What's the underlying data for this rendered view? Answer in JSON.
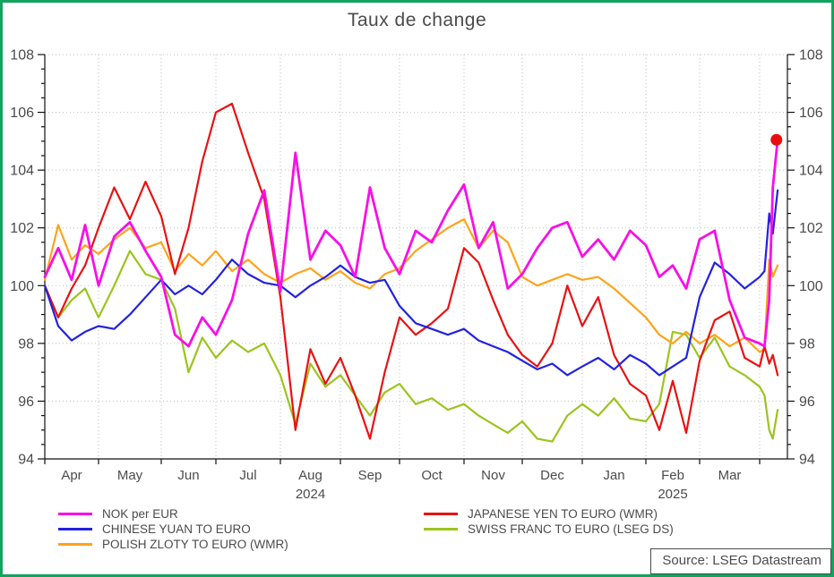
{
  "page": {
    "title": "Taux de change",
    "source": "Source: LSEG Datastream",
    "border_color": "#12A35F",
    "text_color": "#4B4B4B"
  },
  "chart_data": {
    "type": "line",
    "title": "Taux de change",
    "xlabel": "",
    "ylabel": "",
    "ylim": [
      94,
      108
    ],
    "y_ticks": [
      94,
      96,
      98,
      100,
      102,
      104,
      106,
      108
    ],
    "y_minor_tick_step": 0.5,
    "grid": "dotted",
    "legend_position": "bottom",
    "x_month_labels": [
      "Apr",
      "May",
      "Jun",
      "Jul",
      "Aug",
      "Sep",
      "Oct",
      "Nov",
      "Dec",
      "Jan",
      "Feb",
      "Mar"
    ],
    "x_year_labels": [
      {
        "label": "2024",
        "under_month_index": 4
      },
      {
        "label": "2025",
        "under_month_index": 10
      }
    ],
    "series": [
      {
        "key": "nok",
        "name": "NOK per EUR",
        "color": "#F80FE8",
        "points": [
          [
            0,
            100.3
          ],
          [
            0.25,
            101.3
          ],
          [
            0.5,
            100.2
          ],
          [
            0.75,
            102.1
          ],
          [
            1,
            100.0
          ],
          [
            1.25,
            101.7
          ],
          [
            1.5,
            102.2
          ],
          [
            1.75,
            101.2
          ],
          [
            2,
            100.3
          ],
          [
            2.25,
            98.3
          ],
          [
            2.5,
            97.9
          ],
          [
            2.75,
            98.9
          ],
          [
            3,
            98.3
          ],
          [
            3.25,
            99.5
          ],
          [
            3.5,
            101.8
          ],
          [
            3.75,
            103.3
          ],
          [
            4,
            99.8
          ],
          [
            4.25,
            104.6
          ],
          [
            4.5,
            100.9
          ],
          [
            4.75,
            101.9
          ],
          [
            5,
            101.4
          ],
          [
            5.25,
            100.3
          ],
          [
            5.5,
            103.4
          ],
          [
            5.75,
            101.3
          ],
          [
            6,
            100.4
          ],
          [
            6.25,
            101.9
          ],
          [
            6.5,
            101.5
          ],
          [
            6.75,
            102.6
          ],
          [
            7,
            103.5
          ],
          [
            7.25,
            101.3
          ],
          [
            7.5,
            102.2
          ],
          [
            7.75,
            99.9
          ],
          [
            8,
            100.4
          ],
          [
            8.25,
            101.3
          ],
          [
            8.5,
            102.0
          ],
          [
            8.75,
            102.2
          ],
          [
            9,
            101.0
          ],
          [
            9.25,
            101.6
          ],
          [
            9.5,
            100.9
          ],
          [
            9.75,
            101.9
          ],
          [
            10,
            101.4
          ],
          [
            10.25,
            100.3
          ],
          [
            10.5,
            100.7
          ],
          [
            10.75,
            99.9
          ],
          [
            11,
            101.6
          ],
          [
            11.25,
            101.9
          ],
          [
            11.5,
            99.5
          ],
          [
            11.75,
            98.2
          ],
          [
            12,
            98.0
          ],
          [
            12.08,
            97.9
          ],
          [
            12.16,
            99.5
          ],
          [
            12.22,
            103.4
          ],
          [
            12.3,
            105.05
          ]
        ]
      },
      {
        "key": "cny",
        "name": "CHINESE YUAN TO EURO",
        "color": "#2222E0",
        "points": [
          [
            0,
            100.0
          ],
          [
            0.25,
            98.6
          ],
          [
            0.5,
            98.1
          ],
          [
            0.75,
            98.4
          ],
          [
            1,
            98.6
          ],
          [
            1.25,
            98.5
          ],
          [
            1.5,
            99.0
          ],
          [
            1.75,
            99.6
          ],
          [
            2,
            100.2
          ],
          [
            2.25,
            99.7
          ],
          [
            2.5,
            100.0
          ],
          [
            2.75,
            99.7
          ],
          [
            3,
            100.2
          ],
          [
            3.25,
            100.9
          ],
          [
            3.5,
            100.4
          ],
          [
            3.75,
            100.1
          ],
          [
            4,
            100.0
          ],
          [
            4.25,
            99.6
          ],
          [
            4.5,
            100.0
          ],
          [
            4.75,
            100.3
          ],
          [
            5,
            100.7
          ],
          [
            5.25,
            100.3
          ],
          [
            5.5,
            100.1
          ],
          [
            5.75,
            100.2
          ],
          [
            6,
            99.3
          ],
          [
            6.25,
            98.7
          ],
          [
            6.5,
            98.5
          ],
          [
            6.75,
            98.3
          ],
          [
            7,
            98.5
          ],
          [
            7.25,
            98.1
          ],
          [
            7.5,
            97.9
          ],
          [
            7.75,
            97.7
          ],
          [
            8,
            97.4
          ],
          [
            8.25,
            97.1
          ],
          [
            8.5,
            97.3
          ],
          [
            8.75,
            96.9
          ],
          [
            9,
            97.2
          ],
          [
            9.25,
            97.5
          ],
          [
            9.5,
            97.1
          ],
          [
            9.75,
            97.6
          ],
          [
            10,
            97.3
          ],
          [
            10.25,
            96.9
          ],
          [
            10.5,
            97.2
          ],
          [
            10.75,
            97.5
          ],
          [
            11,
            99.6
          ],
          [
            11.25,
            100.8
          ],
          [
            11.5,
            100.4
          ],
          [
            11.75,
            99.9
          ],
          [
            12,
            100.3
          ],
          [
            12.08,
            100.5
          ],
          [
            12.16,
            102.5
          ],
          [
            12.22,
            101.8
          ],
          [
            12.3,
            103.3
          ]
        ]
      },
      {
        "key": "pln",
        "name": "POLISH ZLOTY TO EURO (WMR)",
        "color": "#FFA319",
        "points": [
          [
            0,
            100.2
          ],
          [
            0.25,
            102.1
          ],
          [
            0.5,
            100.9
          ],
          [
            0.75,
            101.4
          ],
          [
            1,
            101.1
          ],
          [
            1.25,
            101.6
          ],
          [
            1.5,
            102.0
          ],
          [
            1.75,
            101.3
          ],
          [
            2,
            101.5
          ],
          [
            2.25,
            100.5
          ],
          [
            2.5,
            101.1
          ],
          [
            2.75,
            100.7
          ],
          [
            3,
            101.2
          ],
          [
            3.25,
            100.5
          ],
          [
            3.5,
            100.9
          ],
          [
            3.75,
            100.4
          ],
          [
            4,
            100.1
          ],
          [
            4.25,
            100.4
          ],
          [
            4.5,
            100.6
          ],
          [
            4.75,
            100.2
          ],
          [
            5,
            100.5
          ],
          [
            5.25,
            100.1
          ],
          [
            5.5,
            99.9
          ],
          [
            5.75,
            100.4
          ],
          [
            6,
            100.6
          ],
          [
            6.25,
            101.2
          ],
          [
            6.5,
            101.6
          ],
          [
            6.75,
            102.0
          ],
          [
            7,
            102.3
          ],
          [
            7.25,
            101.3
          ],
          [
            7.5,
            101.9
          ],
          [
            7.75,
            101.5
          ],
          [
            8,
            100.3
          ],
          [
            8.25,
            100.0
          ],
          [
            8.5,
            100.2
          ],
          [
            8.75,
            100.4
          ],
          [
            9,
            100.2
          ],
          [
            9.25,
            100.3
          ],
          [
            9.5,
            99.9
          ],
          [
            9.75,
            99.4
          ],
          [
            10,
            98.9
          ],
          [
            10.25,
            98.3
          ],
          [
            10.5,
            98.0
          ],
          [
            10.75,
            98.4
          ],
          [
            11,
            98.0
          ],
          [
            11.25,
            98.3
          ],
          [
            11.5,
            97.9
          ],
          [
            11.75,
            98.2
          ],
          [
            12,
            97.7
          ],
          [
            12.08,
            97.8
          ],
          [
            12.16,
            100.9
          ],
          [
            12.22,
            100.3
          ],
          [
            12.3,
            100.7
          ]
        ]
      },
      {
        "key": "jpy",
        "name": "JAPANESE YEN TO EURO (WMR)",
        "color": "#E81212",
        "points": [
          [
            0,
            100.0
          ],
          [
            0.25,
            98.9
          ],
          [
            0.5,
            99.9
          ],
          [
            0.75,
            100.7
          ],
          [
            1,
            102.0
          ],
          [
            1.25,
            103.4
          ],
          [
            1.5,
            102.3
          ],
          [
            1.75,
            103.6
          ],
          [
            2,
            102.4
          ],
          [
            2.25,
            100.4
          ],
          [
            2.5,
            102.0
          ],
          [
            2.75,
            104.3
          ],
          [
            3,
            106.0
          ],
          [
            3.25,
            106.3
          ],
          [
            3.5,
            104.6
          ],
          [
            3.75,
            103.0
          ],
          [
            4,
            99.6
          ],
          [
            4.25,
            95.0
          ],
          [
            4.5,
            97.8
          ],
          [
            4.75,
            96.6
          ],
          [
            5,
            97.5
          ],
          [
            5.25,
            96.2
          ],
          [
            5.5,
            94.7
          ],
          [
            5.75,
            97.0
          ],
          [
            6,
            98.9
          ],
          [
            6.25,
            98.3
          ],
          [
            6.5,
            98.7
          ],
          [
            6.75,
            99.2
          ],
          [
            7,
            101.3
          ],
          [
            7.25,
            100.8
          ],
          [
            7.5,
            99.5
          ],
          [
            7.75,
            98.3
          ],
          [
            8,
            97.6
          ],
          [
            8.25,
            97.2
          ],
          [
            8.5,
            98.0
          ],
          [
            8.75,
            100.0
          ],
          [
            9,
            98.6
          ],
          [
            9.25,
            99.6
          ],
          [
            9.5,
            97.6
          ],
          [
            9.75,
            96.6
          ],
          [
            10,
            96.2
          ],
          [
            10.25,
            95.0
          ],
          [
            10.5,
            96.7
          ],
          [
            10.75,
            94.9
          ],
          [
            11,
            97.4
          ],
          [
            11.25,
            98.8
          ],
          [
            11.5,
            99.1
          ],
          [
            11.75,
            97.5
          ],
          [
            12,
            97.2
          ],
          [
            12.08,
            97.9
          ],
          [
            12.16,
            97.3
          ],
          [
            12.22,
            97.6
          ],
          [
            12.3,
            96.9
          ]
        ]
      },
      {
        "key": "chf",
        "name": "SWISS FRANC TO EURO (LSEG DS)",
        "color": "#9CC41E",
        "points": [
          [
            0,
            100.0
          ],
          [
            0.25,
            98.9
          ],
          [
            0.5,
            99.5
          ],
          [
            0.75,
            99.9
          ],
          [
            1,
            98.9
          ],
          [
            1.25,
            100.0
          ],
          [
            1.5,
            101.2
          ],
          [
            1.75,
            100.4
          ],
          [
            2,
            100.2
          ],
          [
            2.25,
            99.2
          ],
          [
            2.5,
            97.0
          ],
          [
            2.75,
            98.2
          ],
          [
            3,
            97.5
          ],
          [
            3.25,
            98.1
          ],
          [
            3.5,
            97.7
          ],
          [
            3.75,
            98.0
          ],
          [
            4,
            96.9
          ],
          [
            4.25,
            95.2
          ],
          [
            4.5,
            97.3
          ],
          [
            4.75,
            96.5
          ],
          [
            5,
            96.9
          ],
          [
            5.25,
            96.2
          ],
          [
            5.5,
            95.5
          ],
          [
            5.75,
            96.3
          ],
          [
            6,
            96.6
          ],
          [
            6.25,
            95.9
          ],
          [
            6.5,
            96.1
          ],
          [
            6.75,
            95.7
          ],
          [
            7,
            95.9
          ],
          [
            7.25,
            95.5
          ],
          [
            7.5,
            95.2
          ],
          [
            7.75,
            94.9
          ],
          [
            8,
            95.3
          ],
          [
            8.25,
            94.7
          ],
          [
            8.5,
            94.6
          ],
          [
            8.75,
            95.5
          ],
          [
            9,
            95.9
          ],
          [
            9.25,
            95.5
          ],
          [
            9.5,
            96.1
          ],
          [
            9.75,
            95.4
          ],
          [
            10,
            95.3
          ],
          [
            10.25,
            95.9
          ],
          [
            10.5,
            98.4
          ],
          [
            10.75,
            98.3
          ],
          [
            11,
            97.5
          ],
          [
            11.25,
            98.2
          ],
          [
            11.5,
            97.2
          ],
          [
            11.75,
            96.9
          ],
          [
            12,
            96.5
          ],
          [
            12.08,
            96.2
          ],
          [
            12.16,
            95.0
          ],
          [
            12.22,
            94.7
          ],
          [
            12.3,
            95.7
          ]
        ]
      }
    ],
    "end_marker": {
      "series": "NOK per EUR",
      "x": 12.28,
      "y": 105.05,
      "color": "#E80E0E"
    },
    "annotations": []
  },
  "legend": {
    "columns": [
      [
        "nok",
        "cny",
        "pln"
      ],
      [
        "jpy",
        "chf"
      ]
    ]
  }
}
